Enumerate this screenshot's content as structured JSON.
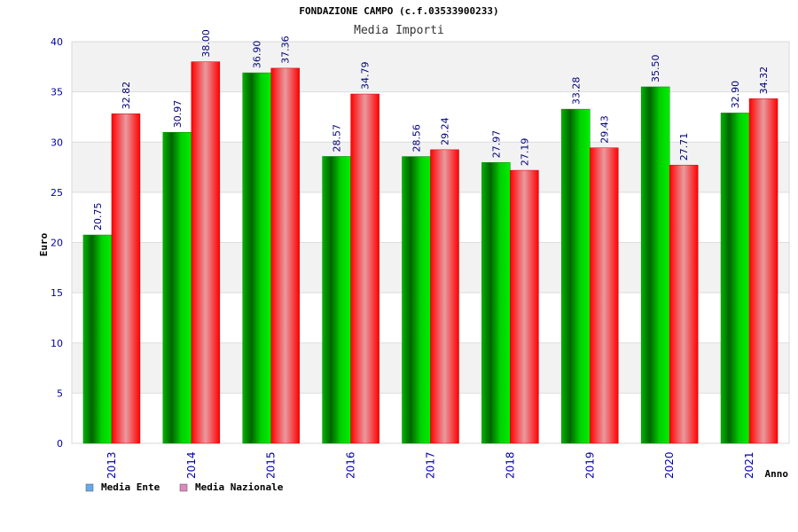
{
  "chart_data": {
    "type": "bar",
    "title": "FONDAZIONE CAMPO (c.f.03533900233)",
    "subtitle": "Media Importi",
    "ylabel": "Euro",
    "xlabel": "Anno",
    "ylim": [
      0,
      40
    ],
    "yticks": [
      0,
      5,
      10,
      15,
      20,
      25,
      30,
      35,
      40
    ],
    "grid": true,
    "legend_position": "bottom-left",
    "categories": [
      "2013",
      "2014",
      "2015",
      "2016",
      "2017",
      "2018",
      "2019",
      "2020",
      "2021"
    ],
    "series": [
      {
        "name": "Media Ente",
        "color": "#00cc00",
        "legend_color": "#66aaee",
        "values": [
          20.75,
          30.97,
          36.9,
          28.57,
          28.56,
          27.97,
          33.28,
          35.5,
          32.9
        ],
        "labels": [
          "20.75",
          "30.97",
          "36.90",
          "28.57",
          "28.56",
          "27.97",
          "33.28",
          "35.50",
          "32.90"
        ]
      },
      {
        "name": "Media Nazionale",
        "color": "#ff1a1a",
        "legend_color": "#dd88bb",
        "values": [
          32.82,
          38.0,
          37.36,
          34.79,
          29.24,
          27.19,
          29.43,
          27.71,
          34.32
        ],
        "labels": [
          "32.82",
          "38.00",
          "37.36",
          "34.79",
          "29.24",
          "27.19",
          "29.43",
          "27.71",
          "34.32"
        ]
      }
    ]
  }
}
